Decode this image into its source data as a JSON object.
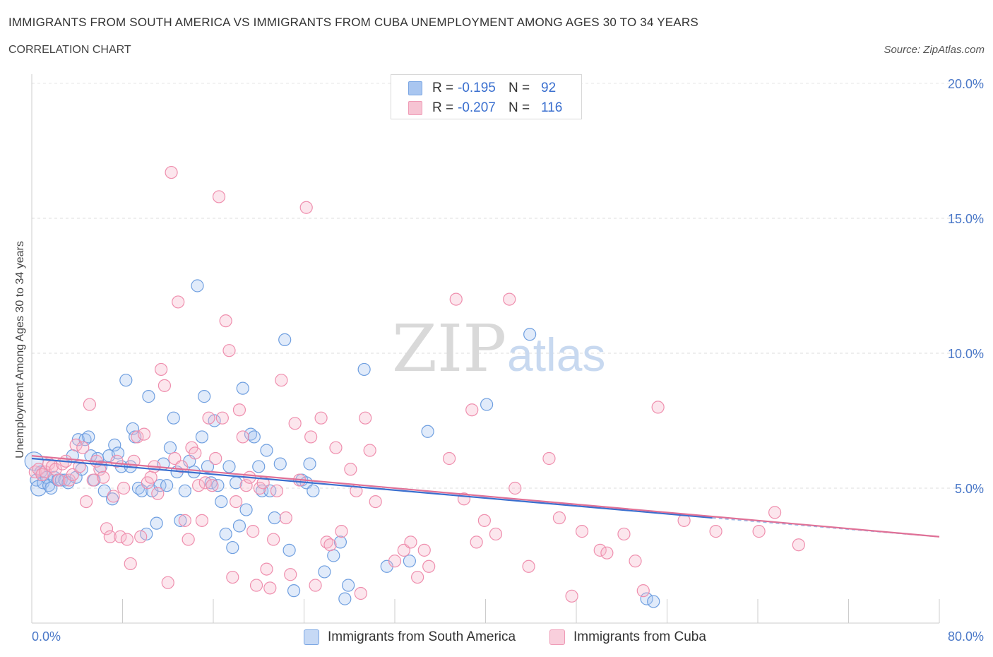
{
  "header": {
    "title": "IMMIGRANTS FROM SOUTH AMERICA VS IMMIGRANTS FROM CUBA UNEMPLOYMENT AMONG AGES 30 TO 34 YEARS",
    "subtitle": "CORRELATION CHART",
    "source": "Source: ZipAtlas.com"
  },
  "legend": {
    "rows": [
      {
        "r_label": "R =",
        "r_value": "-0.195",
        "n_label": "N =",
        "n_value": "92",
        "color": "#a9c6f0"
      },
      {
        "r_label": "R =",
        "r_value": "-0.207",
        "n_label": "N =",
        "n_value": "116",
        "color": "#f6b8cb"
      }
    ]
  },
  "watermark": {
    "zip": "ZIP",
    "atlas": "atlas"
  },
  "chart_data": {
    "type": "scatter",
    "title": "IMMIGRANTS FROM SOUTH AMERICA VS IMMIGRANTS FROM CUBA UNEMPLOYMENT AMONG AGES 30 TO 34 YEARS",
    "xlabel": "",
    "ylabel": "Unemployment Among Ages 30 to 34 years",
    "xlim": [
      0,
      80
    ],
    "ylim": [
      0,
      20
    ],
    "x_tick_labels": [
      "0.0%",
      "80.0%"
    ],
    "y_ticks": [
      5,
      10,
      15,
      20
    ],
    "y_tick_labels": [
      "5.0%",
      "10.0%",
      "15.0%",
      "20.0%"
    ],
    "grid": true,
    "legend_position": "top-center",
    "series": [
      {
        "name": "Immigrants from South America",
        "color": "#6f9fe0",
        "fill": "#a9c6f0",
        "r": -0.195,
        "n": 92,
        "trend": {
          "x0": 0,
          "y0": 6.1,
          "x1": 60,
          "y1": 3.9,
          "dashed_to": 80,
          "dashed_y": 3.2
        },
        "points": [
          [
            0.2,
            6.0
          ],
          [
            0.4,
            5.3
          ],
          [
            0.6,
            5.0
          ],
          [
            0.8,
            5.6
          ],
          [
            1.0,
            5.2
          ],
          [
            1.3,
            5.4
          ],
          [
            1.5,
            5.1
          ],
          [
            1.7,
            5.0
          ],
          [
            2.0,
            5.4
          ],
          [
            2.3,
            5.3
          ],
          [
            2.6,
            5.3
          ],
          [
            2.9,
            5.3
          ],
          [
            3.2,
            5.2
          ],
          [
            3.6,
            6.2
          ],
          [
            3.9,
            5.4
          ],
          [
            4.1,
            6.8
          ],
          [
            4.4,
            5.7
          ],
          [
            4.7,
            6.8
          ],
          [
            5.0,
            6.9
          ],
          [
            5.2,
            6.2
          ],
          [
            5.5,
            5.3
          ],
          [
            5.8,
            6.1
          ],
          [
            6.1,
            5.8
          ],
          [
            6.4,
            4.9
          ],
          [
            6.8,
            6.2
          ],
          [
            7.1,
            4.6
          ],
          [
            7.3,
            6.6
          ],
          [
            7.6,
            6.3
          ],
          [
            7.9,
            5.8
          ],
          [
            8.3,
            9.0
          ],
          [
            8.7,
            5.8
          ],
          [
            8.9,
            7.2
          ],
          [
            9.1,
            6.9
          ],
          [
            9.4,
            5.0
          ],
          [
            9.7,
            4.9
          ],
          [
            10.1,
            3.3
          ],
          [
            10.3,
            8.4
          ],
          [
            10.6,
            4.9
          ],
          [
            11.0,
            3.7
          ],
          [
            11.3,
            5.1
          ],
          [
            11.6,
            5.9
          ],
          [
            11.9,
            5.1
          ],
          [
            12.2,
            6.5
          ],
          [
            12.5,
            7.6
          ],
          [
            12.8,
            5.6
          ],
          [
            13.1,
            3.8
          ],
          [
            13.5,
            4.9
          ],
          [
            13.9,
            6.0
          ],
          [
            14.3,
            5.6
          ],
          [
            14.6,
            12.5
          ],
          [
            15.0,
            6.9
          ],
          [
            15.2,
            8.4
          ],
          [
            15.5,
            5.8
          ],
          [
            15.8,
            5.2
          ],
          [
            16.1,
            7.5
          ],
          [
            16.4,
            5.1
          ],
          [
            16.7,
            4.5
          ],
          [
            17.1,
            3.3
          ],
          [
            17.4,
            5.8
          ],
          [
            17.7,
            2.8
          ],
          [
            18.0,
            5.2
          ],
          [
            18.3,
            3.6
          ],
          [
            18.6,
            8.7
          ],
          [
            18.9,
            4.2
          ],
          [
            19.3,
            7.0
          ],
          [
            19.6,
            6.9
          ],
          [
            20.0,
            5.8
          ],
          [
            20.3,
            4.9
          ],
          [
            20.7,
            6.4
          ],
          [
            21.0,
            4.9
          ],
          [
            21.4,
            3.9
          ],
          [
            21.9,
            5.9
          ],
          [
            22.3,
            10.5
          ],
          [
            22.7,
            2.7
          ],
          [
            23.1,
            1.2
          ],
          [
            23.8,
            5.3
          ],
          [
            24.2,
            5.2
          ],
          [
            24.5,
            5.9
          ],
          [
            24.8,
            4.9
          ],
          [
            25.8,
            1.9
          ],
          [
            26.6,
            2.5
          ],
          [
            27.2,
            3.0
          ],
          [
            27.6,
            0.9
          ],
          [
            27.9,
            1.4
          ],
          [
            29.3,
            9.4
          ],
          [
            31.3,
            2.1
          ],
          [
            33.3,
            2.3
          ],
          [
            34.9,
            7.1
          ],
          [
            40.1,
            8.1
          ],
          [
            43.9,
            10.7
          ],
          [
            54.2,
            0.9
          ],
          [
            54.8,
            0.8
          ]
        ]
      },
      {
        "name": "Immigrants from Cuba",
        "color": "#ef8fae",
        "fill": "#f6b8cb",
        "r": -0.207,
        "n": 116,
        "trend": {
          "x0": 0,
          "y0": 6.2,
          "x1": 80,
          "y1": 3.2
        },
        "points": [
          [
            0.3,
            5.6
          ],
          [
            0.6,
            5.7
          ],
          [
            0.9,
            5.5
          ],
          [
            1.2,
            5.6
          ],
          [
            1.5,
            5.9
          ],
          [
            1.8,
            5.8
          ],
          [
            2.1,
            5.7
          ],
          [
            2.4,
            5.3
          ],
          [
            2.7,
            5.9
          ],
          [
            3.0,
            6.0
          ],
          [
            3.3,
            5.3
          ],
          [
            3.6,
            5.5
          ],
          [
            3.9,
            6.6
          ],
          [
            4.2,
            5.8
          ],
          [
            4.5,
            6.5
          ],
          [
            4.8,
            4.5
          ],
          [
            5.1,
            8.1
          ],
          [
            5.4,
            5.3
          ],
          [
            5.7,
            6.0
          ],
          [
            6.0,
            5.7
          ],
          [
            6.3,
            5.4
          ],
          [
            6.6,
            3.5
          ],
          [
            6.9,
            3.2
          ],
          [
            7.2,
            4.7
          ],
          [
            7.5,
            6.0
          ],
          [
            7.8,
            3.2
          ],
          [
            8.1,
            5.0
          ],
          [
            8.4,
            3.1
          ],
          [
            8.7,
            2.2
          ],
          [
            9.0,
            6.0
          ],
          [
            9.3,
            6.9
          ],
          [
            9.6,
            3.2
          ],
          [
            9.9,
            7.0
          ],
          [
            10.2,
            5.2
          ],
          [
            10.5,
            5.4
          ],
          [
            10.8,
            5.8
          ],
          [
            11.1,
            4.8
          ],
          [
            11.4,
            9.4
          ],
          [
            11.7,
            8.8
          ],
          [
            12.0,
            1.5
          ],
          [
            12.3,
            16.7
          ],
          [
            12.6,
            6.1
          ],
          [
            12.9,
            11.9
          ],
          [
            13.2,
            5.8
          ],
          [
            13.5,
            3.8
          ],
          [
            13.8,
            3.1
          ],
          [
            14.1,
            6.5
          ],
          [
            14.4,
            6.3
          ],
          [
            14.7,
            5.1
          ],
          [
            15.0,
            3.8
          ],
          [
            15.3,
            5.2
          ],
          [
            15.6,
            7.6
          ],
          [
            15.9,
            5.1
          ],
          [
            16.2,
            6.1
          ],
          [
            16.5,
            15.8
          ],
          [
            16.8,
            7.6
          ],
          [
            17.1,
            11.2
          ],
          [
            17.4,
            10.1
          ],
          [
            17.7,
            1.7
          ],
          [
            18.0,
            4.5
          ],
          [
            18.3,
            7.9
          ],
          [
            18.6,
            6.9
          ],
          [
            18.9,
            5.1
          ],
          [
            19.2,
            5.4
          ],
          [
            19.5,
            3.4
          ],
          [
            19.8,
            1.4
          ],
          [
            20.1,
            5.0
          ],
          [
            20.4,
            5.2
          ],
          [
            20.7,
            2.0
          ],
          [
            21.0,
            1.3
          ],
          [
            21.3,
            3.1
          ],
          [
            21.6,
            4.9
          ],
          [
            22.0,
            9.0
          ],
          [
            22.4,
            3.9
          ],
          [
            22.8,
            1.8
          ],
          [
            23.2,
            7.4
          ],
          [
            23.6,
            5.3
          ],
          [
            24.2,
            15.4
          ],
          [
            24.6,
            6.9
          ],
          [
            25.0,
            1.4
          ],
          [
            25.5,
            7.6
          ],
          [
            26.0,
            3.0
          ],
          [
            26.3,
            2.9
          ],
          [
            26.8,
            6.5
          ],
          [
            27.3,
            3.4
          ],
          [
            28.1,
            5.7
          ],
          [
            28.6,
            4.9
          ],
          [
            29.0,
            1.1
          ],
          [
            29.4,
            7.6
          ],
          [
            29.8,
            6.4
          ],
          [
            30.3,
            4.5
          ],
          [
            32.0,
            2.3
          ],
          [
            32.8,
            2.7
          ],
          [
            33.4,
            3.0
          ],
          [
            34.0,
            1.7
          ],
          [
            34.6,
            2.7
          ],
          [
            35.0,
            2.1
          ],
          [
            36.8,
            6.1
          ],
          [
            37.4,
            12.0
          ],
          [
            38.1,
            4.6
          ],
          [
            38.8,
            7.9
          ],
          [
            39.2,
            3.0
          ],
          [
            39.9,
            3.8
          ],
          [
            40.9,
            3.3
          ],
          [
            42.1,
            12.0
          ],
          [
            42.6,
            5.0
          ],
          [
            43.8,
            2.1
          ],
          [
            45.6,
            6.1
          ],
          [
            46.5,
            3.9
          ],
          [
            47.6,
            1.0
          ],
          [
            48.5,
            3.4
          ],
          [
            50.1,
            2.7
          ],
          [
            50.7,
            2.6
          ],
          [
            52.2,
            3.3
          ],
          [
            53.2,
            2.3
          ],
          [
            53.9,
            1.2
          ]
        ]
      }
    ]
  },
  "extra_pink_points": [
    [
      55.2,
      8.0
    ],
    [
      57.5,
      3.8
    ],
    [
      60.3,
      3.4
    ],
    [
      64.1,
      3.4
    ],
    [
      65.5,
      4.1
    ],
    [
      67.6,
      2.9
    ]
  ],
  "bottom_legend": [
    {
      "label": "Immigrants from South America",
      "fill": "#c6d9f5",
      "stroke": "#7aa6e3"
    },
    {
      "label": "Immigrants from Cuba",
      "fill": "#f9cfdc",
      "stroke": "#ef9bb6"
    }
  ]
}
